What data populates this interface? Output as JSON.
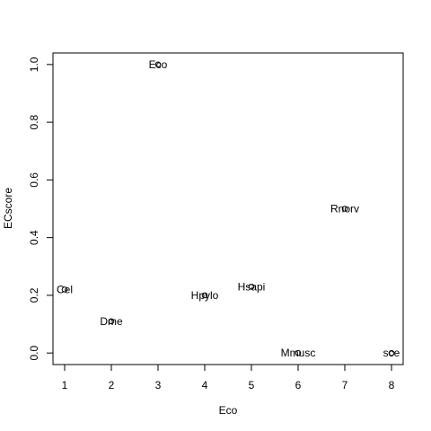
{
  "chart_data": {
    "type": "scatter",
    "xlabel": "Eco",
    "ylabel": "ECscore",
    "xlim": [
      0.75,
      8.25
    ],
    "ylim": [
      -0.04,
      1.04
    ],
    "xticks": [
      1,
      2,
      3,
      4,
      5,
      6,
      7,
      8
    ],
    "yticks": [
      0.0,
      0.2,
      0.4,
      0.6,
      0.8,
      1.0
    ],
    "ytick_labels": [
      "0.0",
      "0.2",
      "0.4",
      "0.6",
      "0.8",
      "1.0"
    ],
    "grid": false,
    "points": [
      {
        "label": "Cel",
        "x": 1,
        "y": 0.22
      },
      {
        "label": "Dme",
        "x": 2,
        "y": 0.11
      },
      {
        "label": "Eco",
        "x": 3,
        "y": 1.0
      },
      {
        "label": "Hpylo",
        "x": 4,
        "y": 0.2
      },
      {
        "label": "Hsapi",
        "x": 5,
        "y": 0.23
      },
      {
        "label": "Mmusc",
        "x": 6,
        "y": 0.0
      },
      {
        "label": "Rnorv",
        "x": 7,
        "y": 0.5
      },
      {
        "label": "sce",
        "x": 8,
        "y": 0.0
      }
    ]
  }
}
